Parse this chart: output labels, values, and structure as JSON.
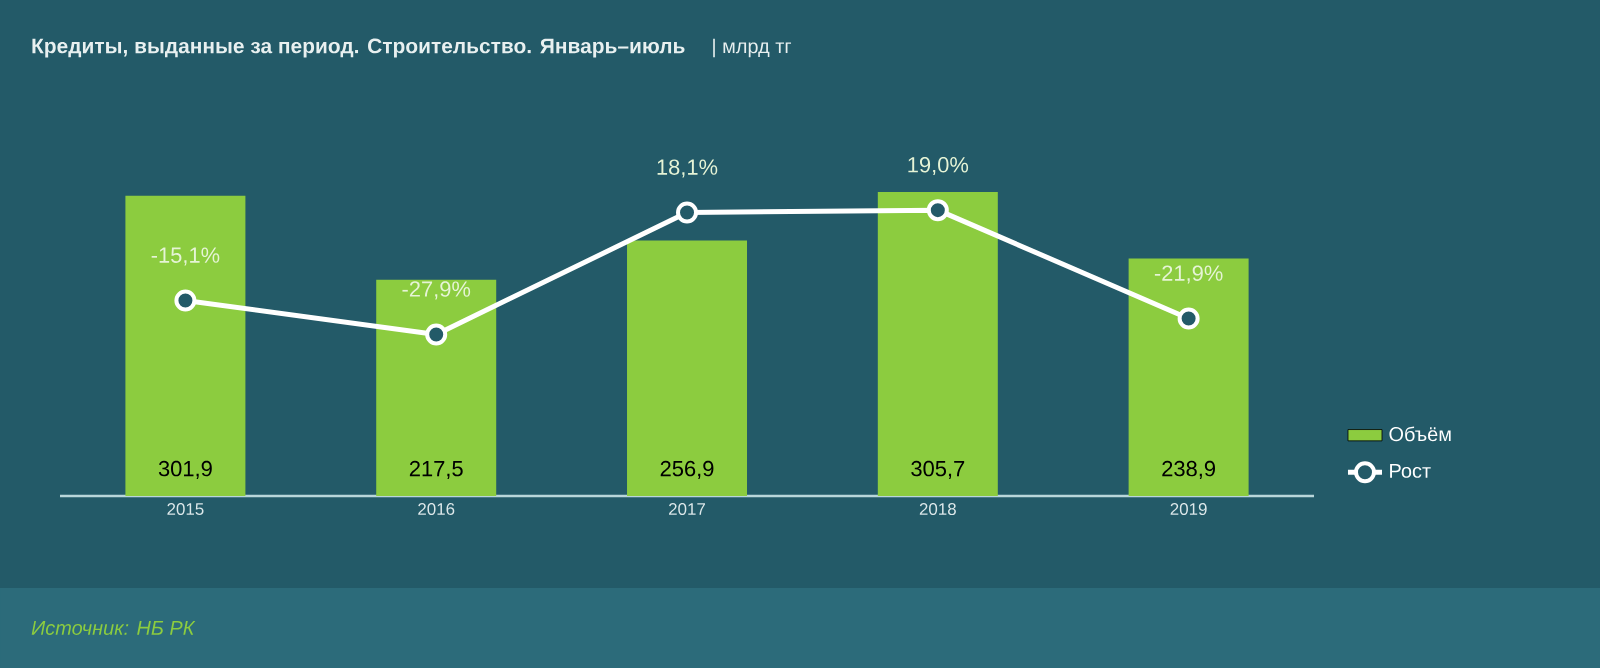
{
  "chart_data": {
    "type": "bar",
    "title": "Кредиты, выданные за период. Строительство. Январь–июль",
    "subtitle": "| млрд тг",
    "categories": [
      "2015",
      "2016",
      "2017",
      "2018",
      "2019"
    ],
    "series": [
      {
        "name": "Объём",
        "color": "#8ccc3f",
        "values": [
          301.9,
          217.5,
          256.9,
          305.7,
          238.9
        ],
        "value_labels": [
          "301,9",
          "217,5",
          "256,9",
          "305,7",
          "238,9"
        ]
      },
      {
        "name": "Рост",
        "type": "line",
        "axis": "y2",
        "color": "#ffffff",
        "marker": "circle",
        "values": [
          -15.1,
          -27.9,
          18.1,
          19.0,
          -21.9
        ],
        "value_labels": [
          "-15,1%",
          "-27,9%",
          "18,1%",
          "19,0%",
          "-21,9%"
        ]
      }
    ],
    "legend": "right",
    "tick_labels": "x",
    "annotations": [
      "Источник: НБ РК"
    ]
  }
}
